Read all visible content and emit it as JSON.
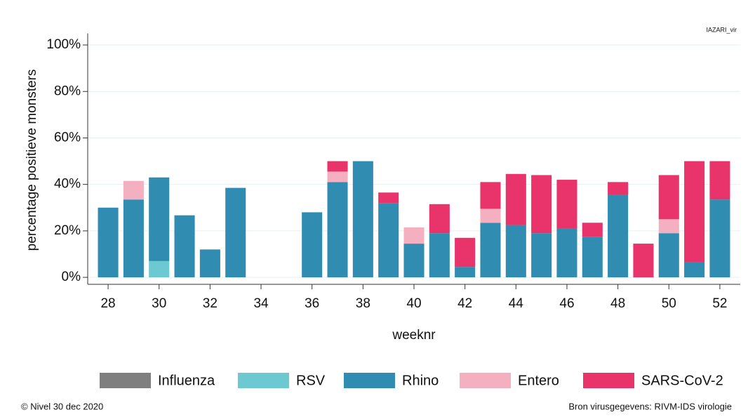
{
  "chart_data": {
    "type": "stacked_bar",
    "xlabel": "weeknr",
    "ylabel": "percentage positieve monsters",
    "annotations": [
      "IAZARI_vir",
      "© Nivel 30 dec 2020",
      "Bron virusgegevens: RIVM-IDS virologie"
    ],
    "x": [
      28,
      29,
      30,
      31,
      32,
      33,
      34,
      35,
      36,
      37,
      38,
      39,
      40,
      41,
      42,
      43,
      44,
      45,
      46,
      47,
      48,
      49,
      50,
      51,
      52
    ],
    "xlim": [
      27.2,
      52.8
    ],
    "xticks": [
      28,
      30,
      32,
      34,
      36,
      38,
      40,
      42,
      44,
      46,
      48,
      50,
      52
    ],
    "ylim": [
      -3,
      105
    ],
    "yticks": [
      {
        "value": 0,
        "label": "0%"
      },
      {
        "value": 20,
        "label": "20%"
      },
      {
        "value": 40,
        "label": "40%"
      },
      {
        "value": 60,
        "label": "60%"
      },
      {
        "value": 80,
        "label": "80%"
      },
      {
        "value": 100,
        "label": "100%"
      }
    ],
    "grid": true,
    "legend": "bottom",
    "series": [
      {
        "name": "Influenza",
        "color": "#7f7f7f",
        "values": [
          0,
          0,
          0,
          0,
          0,
          0,
          0,
          0,
          0,
          0,
          0,
          0,
          0,
          0,
          0,
          0,
          0,
          0,
          0,
          0,
          0,
          0,
          0,
          0,
          0
        ]
      },
      {
        "name": "RSV",
        "color": "#6cc9d1",
        "values": [
          0,
          0,
          7,
          0,
          0,
          0,
          0,
          0,
          0,
          0,
          0,
          0,
          0,
          0,
          0,
          0,
          0,
          0,
          0,
          0,
          0,
          0,
          0,
          0,
          0
        ]
      },
      {
        "name": "Rhino",
        "color": "#318cb1",
        "values": [
          30,
          33.5,
          36,
          26.7,
          12,
          38.5,
          0,
          0,
          28,
          41,
          50,
          32,
          14.5,
          19,
          4.5,
          23.5,
          22.5,
          19,
          21,
          17.5,
          35.5,
          0,
          19,
          6.5,
          33.5
        ]
      },
      {
        "name": "Entero",
        "color": "#f4b0c1",
        "values": [
          0,
          8,
          0,
          0,
          0,
          0,
          0,
          0,
          0,
          4.5,
          0,
          0,
          7,
          0,
          0,
          6,
          0,
          0,
          0,
          0,
          0,
          0,
          6,
          0,
          0
        ]
      },
      {
        "name": "SARS-CoV-2",
        "color": "#e8336b",
        "values": [
          0,
          0,
          0,
          0,
          0,
          0,
          0,
          0,
          0,
          4.5,
          0,
          4.5,
          0,
          12.5,
          12.5,
          11.5,
          22,
          25,
          21,
          6,
          5.5,
          14.5,
          19,
          43.5,
          16.5
        ]
      }
    ]
  }
}
